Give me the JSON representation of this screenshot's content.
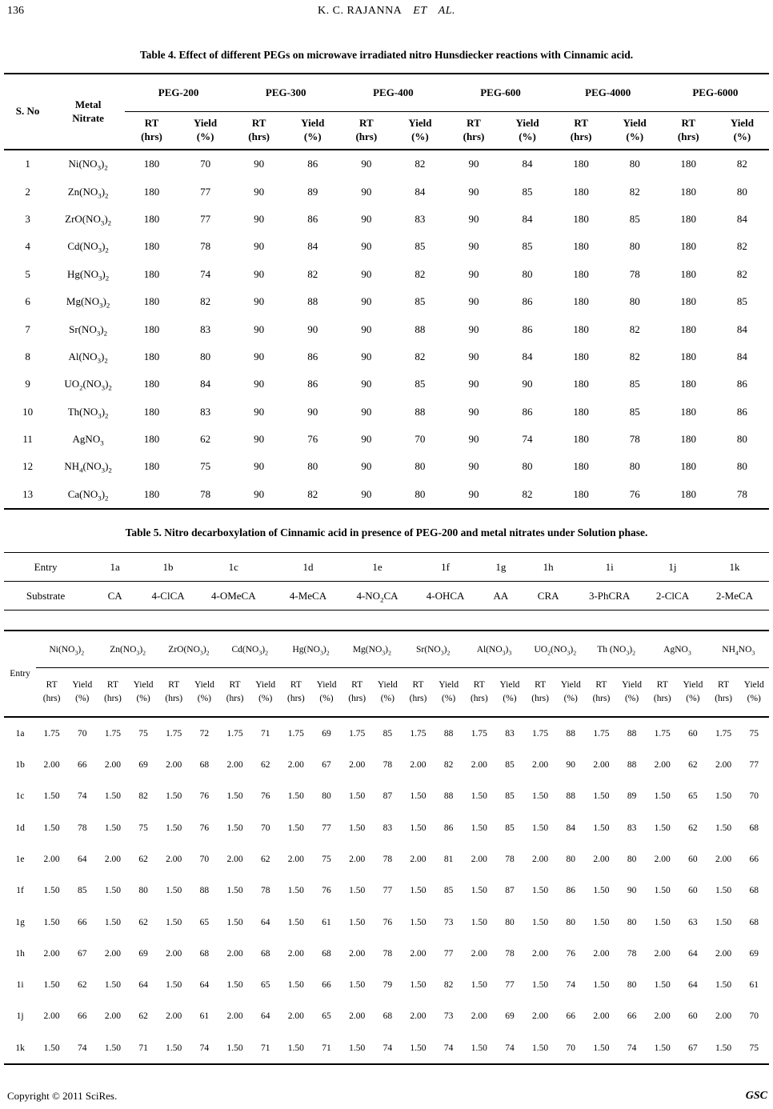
{
  "page": {
    "page_number": "136",
    "running_head": "K. C. RAJANNA",
    "running_head_et": "ET",
    "running_head_al": "AL.",
    "footer_left": "Copyright © 2011 SciRes.",
    "footer_right": "GSC"
  },
  "table4": {
    "title": "Table 4. Effect of different PEGs on microwave irradiated nitro Hunsdiecker reactions with Cinnamic acid.",
    "col_sno": "S. No",
    "col_metal_line1": "Metal",
    "col_metal_line2": "Nitrate",
    "peg_groups": [
      "PEG-200",
      "PEG-300",
      "PEG-400",
      "PEG-600",
      "PEG-4000",
      "PEG-6000"
    ],
    "rt_label": "RT",
    "rt_unit": "(hrs)",
    "yield_label": "Yield",
    "yield_unit": "(%)",
    "rows": [
      {
        "sno": "1",
        "metal": "Ni(NO~3~)~2~",
        "values": [
          180,
          70,
          90,
          86,
          90,
          82,
          90,
          84,
          180,
          80,
          180,
          82
        ]
      },
      {
        "sno": "2",
        "metal": "Zn(NO~3~)~2~",
        "values": [
          180,
          77,
          90,
          89,
          90,
          84,
          90,
          85,
          180,
          82,
          180,
          80
        ]
      },
      {
        "sno": "3",
        "metal": "ZrO(NO~3~)~2~",
        "values": [
          180,
          77,
          90,
          86,
          90,
          83,
          90,
          84,
          180,
          85,
          180,
          84
        ]
      },
      {
        "sno": "4",
        "metal": "Cd(NO~3~)~2~",
        "values": [
          180,
          78,
          90,
          84,
          90,
          85,
          90,
          85,
          180,
          80,
          180,
          82
        ]
      },
      {
        "sno": "5",
        "metal": "Hg(NO~3~)~2~",
        "values": [
          180,
          74,
          90,
          82,
          90,
          82,
          90,
          80,
          180,
          78,
          180,
          82
        ]
      },
      {
        "sno": "6",
        "metal": "Mg(NO~3~)~2~",
        "values": [
          180,
          82,
          90,
          88,
          90,
          85,
          90,
          86,
          180,
          80,
          180,
          85
        ]
      },
      {
        "sno": "7",
        "metal": "Sr(NO~3~)~2~",
        "values": [
          180,
          83,
          90,
          90,
          90,
          88,
          90,
          86,
          180,
          82,
          180,
          84
        ]
      },
      {
        "sno": "8",
        "metal": "Al(NO~3~)~2~",
        "values": [
          180,
          80,
          90,
          86,
          90,
          82,
          90,
          84,
          180,
          82,
          180,
          84
        ]
      },
      {
        "sno": "9",
        "metal": "UO~2~(NO~3~)~2~",
        "values": [
          180,
          84,
          90,
          86,
          90,
          85,
          90,
          90,
          180,
          85,
          180,
          86
        ]
      },
      {
        "sno": "10",
        "metal": "Th(NO~3~)~2~",
        "values": [
          180,
          83,
          90,
          90,
          90,
          88,
          90,
          86,
          180,
          85,
          180,
          86
        ]
      },
      {
        "sno": "11",
        "metal": "AgNO~3~",
        "values": [
          180,
          62,
          90,
          76,
          90,
          70,
          90,
          74,
          180,
          78,
          180,
          80
        ]
      },
      {
        "sno": "12",
        "metal": "NH~4~(NO~3~)~2~",
        "values": [
          180,
          75,
          90,
          80,
          90,
          80,
          90,
          80,
          180,
          80,
          180,
          80
        ]
      },
      {
        "sno": "13",
        "metal": "Ca(NO~3~)~2~",
        "values": [
          180,
          78,
          90,
          82,
          90,
          80,
          90,
          82,
          180,
          76,
          180,
          78
        ]
      }
    ]
  },
  "table5": {
    "title": "Table 5. Nitro decarboxylation of Cinnamic acid in presence of PEG-200 and metal nitrates under Solution phase.",
    "entry_label": "Entry",
    "entries": [
      "1a",
      "1b",
      "1c",
      "1d",
      "1e",
      "1f",
      "1g",
      "1h",
      "1i",
      "1j",
      "1k"
    ],
    "substrate_label": "Substrate",
    "substrates": [
      "CA",
      "4-ClCA",
      "4-OMeCA",
      "4-MeCA",
      "4-NO~2~CA",
      "4-OHCA",
      "AA",
      "CRA",
      "3-PhCRA",
      "2-ClCA",
      "2-MeCA"
    ],
    "matrix": {
      "entry_label": "Entry",
      "nitrates": [
        "Ni(NO~3~)~2~",
        "Zn(NO~3~)~2~",
        "ZrO(NO~3~)~2~",
        "Cd(NO~3~)~2~",
        "Hg(NO~3~)~2~",
        "Mg(NO~3~)~2~",
        "Sr(NO~3~)~2~",
        "Al(NO~3~)~3~",
        "UO~2~(NO~3~)~2~",
        "Th (NO~3~)~2~",
        "AgNO~3~",
        "NH~4~NO~3~"
      ],
      "rt_label": "RT",
      "rt_unit": "(hrs)",
      "yield_label": "Yield",
      "yield_unit": "(%)",
      "rows": [
        {
          "entry": "1a",
          "values": [
            "1.75",
            70,
            "1.75",
            75,
            "1.75",
            72,
            "1.75",
            71,
            "1.75",
            69,
            "1.75",
            85,
            "1.75",
            88,
            "1.75",
            83,
            "1.75",
            88,
            "1.75",
            88,
            "1.75",
            60,
            "1.75",
            75
          ]
        },
        {
          "entry": "1b",
          "values": [
            "2.00",
            66,
            "2.00",
            69,
            "2.00",
            68,
            "2.00",
            62,
            "2.00",
            67,
            "2.00",
            78,
            "2.00",
            82,
            "2.00",
            85,
            "2.00",
            90,
            "2.00",
            88,
            "2.00",
            62,
            "2.00",
            77
          ]
        },
        {
          "entry": "1c",
          "values": [
            "1.50",
            74,
            "1.50",
            82,
            "1.50",
            76,
            "1.50",
            76,
            "1.50",
            80,
            "1.50",
            87,
            "1.50",
            88,
            "1.50",
            85,
            "1.50",
            88,
            "1.50",
            89,
            "1.50",
            65,
            "1.50",
            70
          ]
        },
        {
          "entry": "1d",
          "values": [
            "1.50",
            78,
            "1.50",
            75,
            "1.50",
            76,
            "1.50",
            70,
            "1.50",
            77,
            "1.50",
            83,
            "1.50",
            86,
            "1.50",
            85,
            "1.50",
            84,
            "1.50",
            83,
            "1.50",
            62,
            "1.50",
            68
          ]
        },
        {
          "entry": "1e",
          "values": [
            "2.00",
            64,
            "2.00",
            62,
            "2.00",
            70,
            "2.00",
            62,
            "2.00",
            75,
            "2.00",
            78,
            "2.00",
            81,
            "2.00",
            78,
            "2.00",
            80,
            "2.00",
            80,
            "2.00",
            60,
            "2.00",
            66
          ]
        },
        {
          "entry": "1f",
          "values": [
            "1.50",
            85,
            "1.50",
            80,
            "1.50",
            88,
            "1.50",
            78,
            "1.50",
            76,
            "1.50",
            77,
            "1.50",
            85,
            "1.50",
            87,
            "1.50",
            86,
            "1.50",
            90,
            "1.50",
            60,
            "1.50",
            68
          ]
        },
        {
          "entry": "1g",
          "values": [
            "1.50",
            66,
            "1.50",
            62,
            "1.50",
            65,
            "1.50",
            64,
            "1.50",
            61,
            "1.50",
            76,
            "1.50",
            73,
            "1.50",
            80,
            "1.50",
            80,
            "1.50",
            80,
            "1.50",
            63,
            "1.50",
            68
          ]
        },
        {
          "entry": "1h",
          "values": [
            "2.00",
            67,
            "2.00",
            69,
            "2.00",
            68,
            "2.00",
            68,
            "2.00",
            68,
            "2.00",
            78,
            "2.00",
            77,
            "2.00",
            78,
            "2.00",
            76,
            "2.00",
            78,
            "2.00",
            64,
            "2.00",
            69
          ]
        },
        {
          "entry": "1i",
          "values": [
            "1.50",
            62,
            "1.50",
            64,
            "1.50",
            64,
            "1.50",
            65,
            "1.50",
            66,
            "1.50",
            79,
            "1.50",
            82,
            "1.50",
            77,
            "1.50",
            74,
            "1.50",
            80,
            "1.50",
            64,
            "1.50",
            61
          ]
        },
        {
          "entry": "1j",
          "values": [
            "2.00",
            66,
            "2.00",
            62,
            "2.00",
            61,
            "2.00",
            64,
            "2.00",
            65,
            "2.00",
            68,
            "2.00",
            73,
            "2.00",
            69,
            "2.00",
            66,
            "2.00",
            66,
            "2.00",
            60,
            "2.00",
            70
          ]
        },
        {
          "entry": "1k",
          "values": [
            "1.50",
            74,
            "1.50",
            71,
            "1.50",
            74,
            "1.50",
            71,
            "1.50",
            71,
            "1.50",
            74,
            "1.50",
            74,
            "1.50",
            74,
            "1.50",
            70,
            "1.50",
            74,
            "1.50",
            67,
            "1.50",
            75
          ]
        }
      ]
    }
  }
}
